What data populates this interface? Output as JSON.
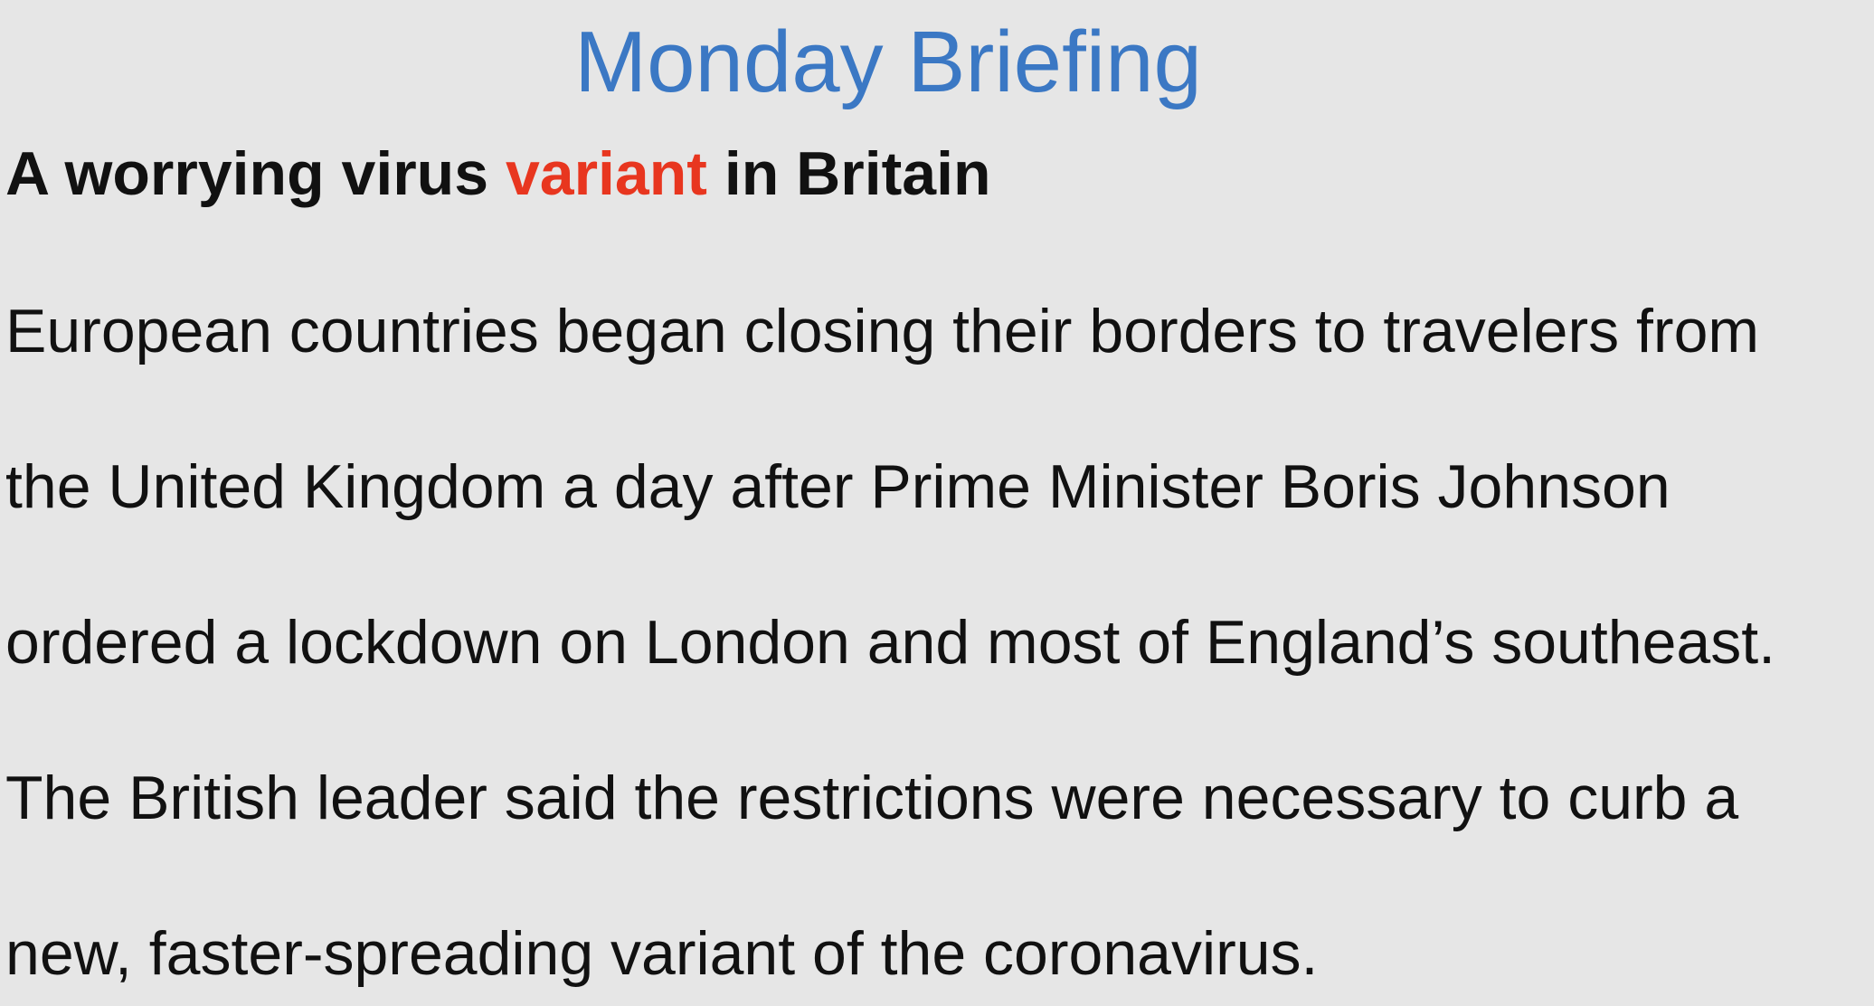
{
  "slide": {
    "title": "Monday Briefing",
    "headline": {
      "before": "A worrying virus ",
      "highlight": "variant",
      "after": " in Britain"
    },
    "body_lines": [
      "European countries began closing their borders to travelers from",
      "the United Kingdom a day after Prime Minister Boris Johnson",
      "ordered a lockdown on London and most of England’s southeast.",
      "The British leader said the restrictions were necessary to curb a",
      "new, faster-spreading variant of the coronavirus."
    ]
  },
  "colors": {
    "background": "#e6e6e6",
    "title": "#3b78c4",
    "highlight": "#e8361f",
    "text": "#111111"
  }
}
